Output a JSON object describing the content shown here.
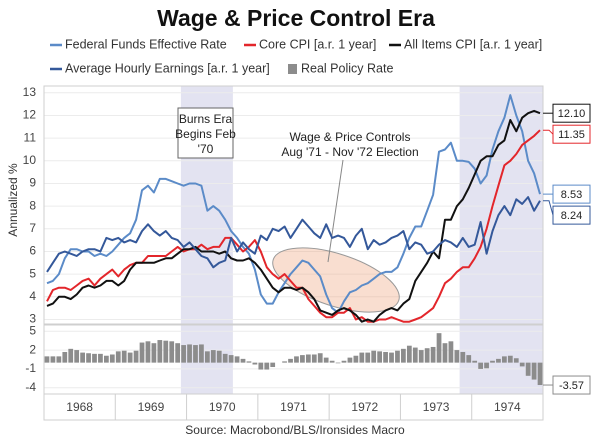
{
  "chart_data": [
    {
      "type": "line",
      "title": "Wage & Price Control Era",
      "y_label": "Annualized %",
      "ylim": [
        2.8,
        13.3
      ],
      "yticks": [
        3,
        4,
        5,
        6,
        7,
        8,
        9,
        10,
        11,
        12,
        13
      ],
      "grid": true,
      "series": [
        {
          "name": "Federal Funds Effective Rate",
          "color": "#5b8bc8",
          "end_label": "8.53",
          "values": [
            [
              4.6,
              4.7,
              5.0,
              5.7,
              6.1,
              6.1,
              6.0,
              6.0,
              5.8,
              5.9,
              5.8,
              6.0
            ],
            [
              6.3,
              6.6,
              6.8,
              7.4,
              8.7,
              8.9,
              8.6,
              9.2,
              9.2,
              9.1,
              9.0,
              8.9
            ],
            [
              9.0,
              9.0,
              8.9,
              7.8,
              8.0,
              7.8,
              7.4,
              6.9,
              6.6,
              6.2,
              5.9,
              5.2
            ],
            [
              4.1,
              3.7,
              3.7,
              4.2,
              4.6,
              5.0,
              5.3,
              5.6,
              5.5,
              5.2,
              4.9,
              4.1
            ],
            [
              3.5,
              3.3,
              3.8,
              4.2,
              4.3,
              4.5,
              4.6,
              4.8,
              5.0,
              5.1,
              5.1,
              5.3
            ],
            [
              5.9,
              6.6,
              7.1,
              7.1,
              7.8,
              8.5,
              10.4,
              10.5,
              10.8,
              10.0,
              10.0,
              9.95
            ],
            [
              9.65,
              9.0,
              9.35,
              10.5,
              11.3,
              11.9,
              12.9,
              12.0,
              11.3,
              10.0,
              9.45,
              8.53
            ]
          ]
        },
        {
          "name": "Core CPI [a.r. 1 year]",
          "color": "#e3262b",
          "end_label": "11.35",
          "values": [
            [
              3.8,
              4.3,
              4.4,
              4.4,
              4.3,
              4.5,
              4.7,
              4.8,
              4.5,
              4.8,
              5.0,
              5.2
            ],
            [
              4.9,
              5.2,
              5.4,
              5.5,
              5.5,
              5.8,
              5.8,
              5.8,
              5.8,
              6.0,
              6.2,
              6.0
            ],
            [
              6.1,
              6.1,
              6.3,
              6.1,
              6.2,
              6.2,
              6.6,
              6.6,
              6.3,
              6.0,
              6.2,
              6.5
            ],
            [
              6.0,
              5.3,
              5.0,
              4.8,
              5.0,
              4.7,
              4.4,
              4.4,
              3.9,
              3.6,
              3.3,
              3.1
            ],
            [
              3.1,
              3.3,
              3.3,
              3.5,
              3.0,
              3.1,
              2.9,
              2.9,
              3.0,
              3.0,
              3.1,
              3.0
            ],
            [
              2.9,
              2.9,
              3.0,
              3.1,
              3.3,
              3.5,
              4.0,
              4.6,
              4.8,
              5.1,
              5.3,
              5.3
            ],
            [
              5.7,
              6.2,
              7.0,
              8.0,
              8.9,
              9.8,
              10.0,
              10.3,
              10.7,
              10.9,
              11.1,
              11.35
            ]
          ]
        },
        {
          "name": "All Items CPI [a.r. 1 year]",
          "color": "#111111",
          "end_label": "12.10",
          "values": [
            [
              3.6,
              3.7,
              4.0,
              4.0,
              3.9,
              4.1,
              4.4,
              4.5,
              4.4,
              4.5,
              4.7,
              4.7
            ],
            [
              4.5,
              4.7,
              5.2,
              5.5,
              5.5,
              5.5,
              5.5,
              5.6,
              5.7,
              5.7,
              5.9,
              6.1
            ],
            [
              6.1,
              6.2,
              6.0,
              6.0,
              6.0,
              5.9,
              6.0,
              5.7,
              5.6,
              5.6,
              5.7,
              5.5
            ],
            [
              5.2,
              4.8,
              4.4,
              4.2,
              4.4,
              4.4,
              4.3,
              4.4,
              4.2,
              3.9,
              3.4,
              3.3
            ],
            [
              3.2,
              3.4,
              3.5,
              3.4,
              3.2,
              2.9,
              3.0,
              2.9,
              3.2,
              3.4,
              3.5,
              3.4
            ],
            [
              3.7,
              3.9,
              4.7,
              5.1,
              5.5,
              6.0,
              5.7,
              7.4,
              7.4,
              8.0,
              8.3,
              8.8
            ],
            [
              9.4,
              10.0,
              10.2,
              10.2,
              10.7,
              10.9,
              11.8,
              11.3,
              11.9,
              12.1,
              12.2,
              12.1
            ]
          ]
        },
        {
          "name": "Average Hourly Earnings [a.r. 1 year]",
          "color": "#34589a",
          "end_label": "8.24",
          "values": [
            [
              5.1,
              5.5,
              5.9,
              6.0,
              5.9,
              5.8,
              6.0,
              6.1,
              6.1,
              6.0,
              6.6,
              6.5
            ],
            [
              6.6,
              6.4,
              6.5,
              6.4,
              6.9,
              7.2,
              6.9,
              6.7,
              6.9,
              6.6,
              6.5,
              6.2
            ],
            [
              6.4,
              6.1,
              5.8,
              5.7,
              5.3,
              5.5,
              5.6,
              6.6,
              6.0,
              6.4,
              6.1,
              5.9
            ],
            [
              6.7,
              6.5,
              7.0,
              6.9,
              7.1,
              6.6,
              7.0,
              7.4,
              7.1,
              6.8,
              6.6,
              7.2
            ],
            [
              6.6,
              6.7,
              6.6,
              6.2,
              6.7,
              7.0,
              6.1,
              6.5,
              6.3,
              6.4,
              6.6,
              6.7
            ],
            [
              6.9,
              6.1,
              6.4,
              6.3,
              5.9,
              6.0,
              6.3,
              6.5,
              6.4,
              6.2,
              6.6,
              6.2
            ],
            [
              6.3,
              7.3,
              5.9,
              6.9,
              7.6,
              8.0,
              7.6,
              8.3,
              8.1,
              8.4,
              7.8,
              8.24
            ]
          ]
        }
      ],
      "annotations": [
        {
          "lines": [
            "Burns Era",
            "Begins Feb",
            "'70"
          ]
        },
        {
          "lines": [
            "Wage & Price Controls",
            "Aug '71 - Nov '72 Election"
          ]
        }
      ]
    },
    {
      "type": "bar",
      "categories": [
        "1968",
        "1969",
        "1970",
        "1971",
        "1972",
        "1973",
        "1974"
      ],
      "xlim": [
        1968,
        1975
      ],
      "shading": [
        {
          "start": 1969.92,
          "end": 1970.65
        },
        {
          "start": 1973.83,
          "end": 1975
        }
      ],
      "ylim": [
        -5,
        6
      ],
      "yticks": [
        5,
        2,
        -1,
        -4
      ],
      "source": "Source: Macrobond/BLS/Ironsides Macro",
      "series": [
        {
          "name": "Real Policy Rate",
          "color": "#8c8c8c",
          "end_label": "-3.57",
          "values": [
            [
              1.0,
              1.0,
              1.0,
              1.7,
              2.2,
              2.0,
              1.6,
              1.5,
              1.4,
              1.4,
              1.1,
              1.3
            ],
            [
              1.8,
              1.9,
              1.6,
              1.9,
              3.2,
              3.4,
              3.1,
              3.6,
              3.5,
              3.4,
              3.1,
              2.8
            ],
            [
              2.9,
              2.8,
              2.9,
              1.8,
              2.0,
              1.9,
              1.4,
              1.2,
              1.0,
              0.6,
              0.2,
              -0.3
            ],
            [
              -1.1,
              -1.1,
              -0.7,
              0.0,
              0.2,
              0.6,
              1.0,
              1.2,
              1.3,
              1.3,
              1.5,
              0.8
            ],
            [
              0.3,
              -0.1,
              0.3,
              0.8,
              1.1,
              1.6,
              1.6,
              1.9,
              1.8,
              1.7,
              1.6,
              1.9
            ],
            [
              2.2,
              2.7,
              2.4,
              2.0,
              2.3,
              2.5,
              4.7,
              3.1,
              3.4,
              2.0,
              1.7,
              1.2
            ],
            [
              0.3,
              -1.0,
              -0.9,
              0.3,
              0.6,
              1.0,
              1.1,
              0.7,
              -0.6,
              -2.1,
              -2.7,
              -3.57
            ]
          ]
        }
      ]
    }
  ]
}
